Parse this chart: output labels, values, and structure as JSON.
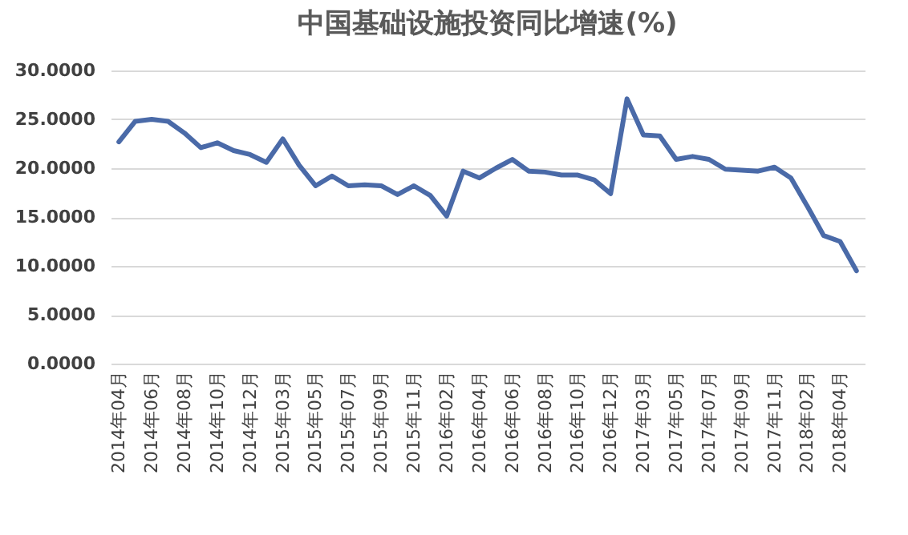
{
  "chart_data": {
    "type": "line",
    "title": "中国基础设施投资同比增速(%)",
    "categories": [
      "2014年04月",
      null,
      "2014年06月",
      null,
      "2014年08月",
      null,
      "2014年10月",
      null,
      "2014年12月",
      null,
      "2015年03月",
      null,
      "2015年05月",
      null,
      "2015年07月",
      null,
      "2015年09月",
      null,
      "2015年11月",
      null,
      "2016年02月",
      null,
      "2016年04月",
      null,
      "2016年06月",
      null,
      "2016年08月",
      null,
      "2016年10月",
      null,
      "2016年12月",
      null,
      "2017年03月",
      null,
      "2017年05月",
      null,
      "2017年07月",
      null,
      "2017年09月",
      null,
      "2017年11月",
      null,
      "2018年02月",
      null,
      "2018年04月",
      null
    ],
    "series": [
      {
        "color": "#4a6aa8",
        "values": [
          22.7,
          24.8,
          25.0,
          24.8,
          23.6,
          22.1,
          22.6,
          21.8,
          21.4,
          20.6,
          23.0,
          20.3,
          18.2,
          19.2,
          18.2,
          18.3,
          18.2,
          17.3,
          18.2,
          17.2,
          15.1,
          19.7,
          19.0,
          20.0,
          20.9,
          19.7,
          19.6,
          19.3,
          19.3,
          18.8,
          17.4,
          27.1,
          23.4,
          23.3,
          20.9,
          21.2,
          20.9,
          19.9,
          19.8,
          19.7,
          20.1,
          19.0,
          16.1,
          13.1,
          12.5,
          9.5
        ]
      }
    ],
    "ylim": [
      0,
      30
    ],
    "yticks": [
      {
        "value": 0,
        "label": "0.0000"
      },
      {
        "value": 5,
        "label": "5.0000"
      },
      {
        "value": 10,
        "label": "10.0000"
      },
      {
        "value": 15,
        "label": "15.0000"
      },
      {
        "value": 20,
        "label": "20.0000"
      },
      {
        "value": 25,
        "label": "25.0000"
      },
      {
        "value": 30,
        "label": "30.0000"
      }
    ],
    "grid": "y",
    "marker": "none",
    "line_style": "solid"
  }
}
